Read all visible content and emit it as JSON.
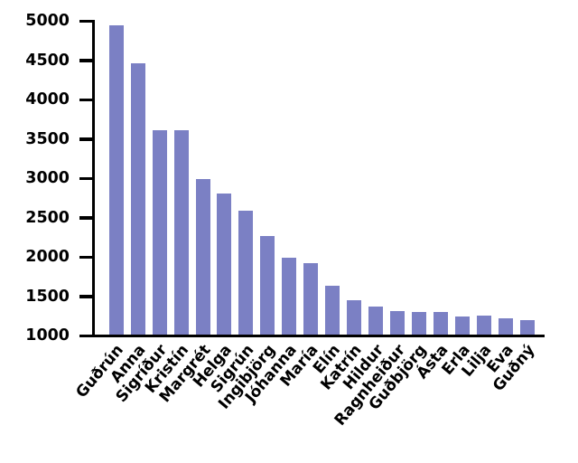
{
  "chart_data": {
    "type": "bar",
    "title": "",
    "xlabel": "",
    "ylabel": "",
    "categories": [
      "Guðrún",
      "Anna",
      "Sigríður",
      "Kristín",
      "Margrét",
      "Helga",
      "Sigrún",
      "Ingibjörg",
      "Jóhanna",
      "María",
      "Elín",
      "Katrín",
      "Hildur",
      "Ragnheiður",
      "Guðbjörg",
      "Ásta",
      "Erla",
      "Lilja",
      "Eva",
      "Guðný"
    ],
    "values": [
      4950,
      4460,
      3620,
      3610,
      3000,
      2810,
      2590,
      2270,
      1990,
      1930,
      1640,
      1450,
      1370,
      1320,
      1300,
      1310,
      1250,
      1260,
      1220,
      1200
    ],
    "ylim": [
      1000,
      5000
    ],
    "yticks": [
      1000,
      1500,
      2000,
      2500,
      3000,
      3500,
      4000,
      4500,
      5000
    ],
    "grid": false,
    "legend": null,
    "bar_color": "#7b80c4",
    "axis_color": "#000000",
    "label_color": "#000000",
    "x_tick_rotation_deg": 50
  }
}
